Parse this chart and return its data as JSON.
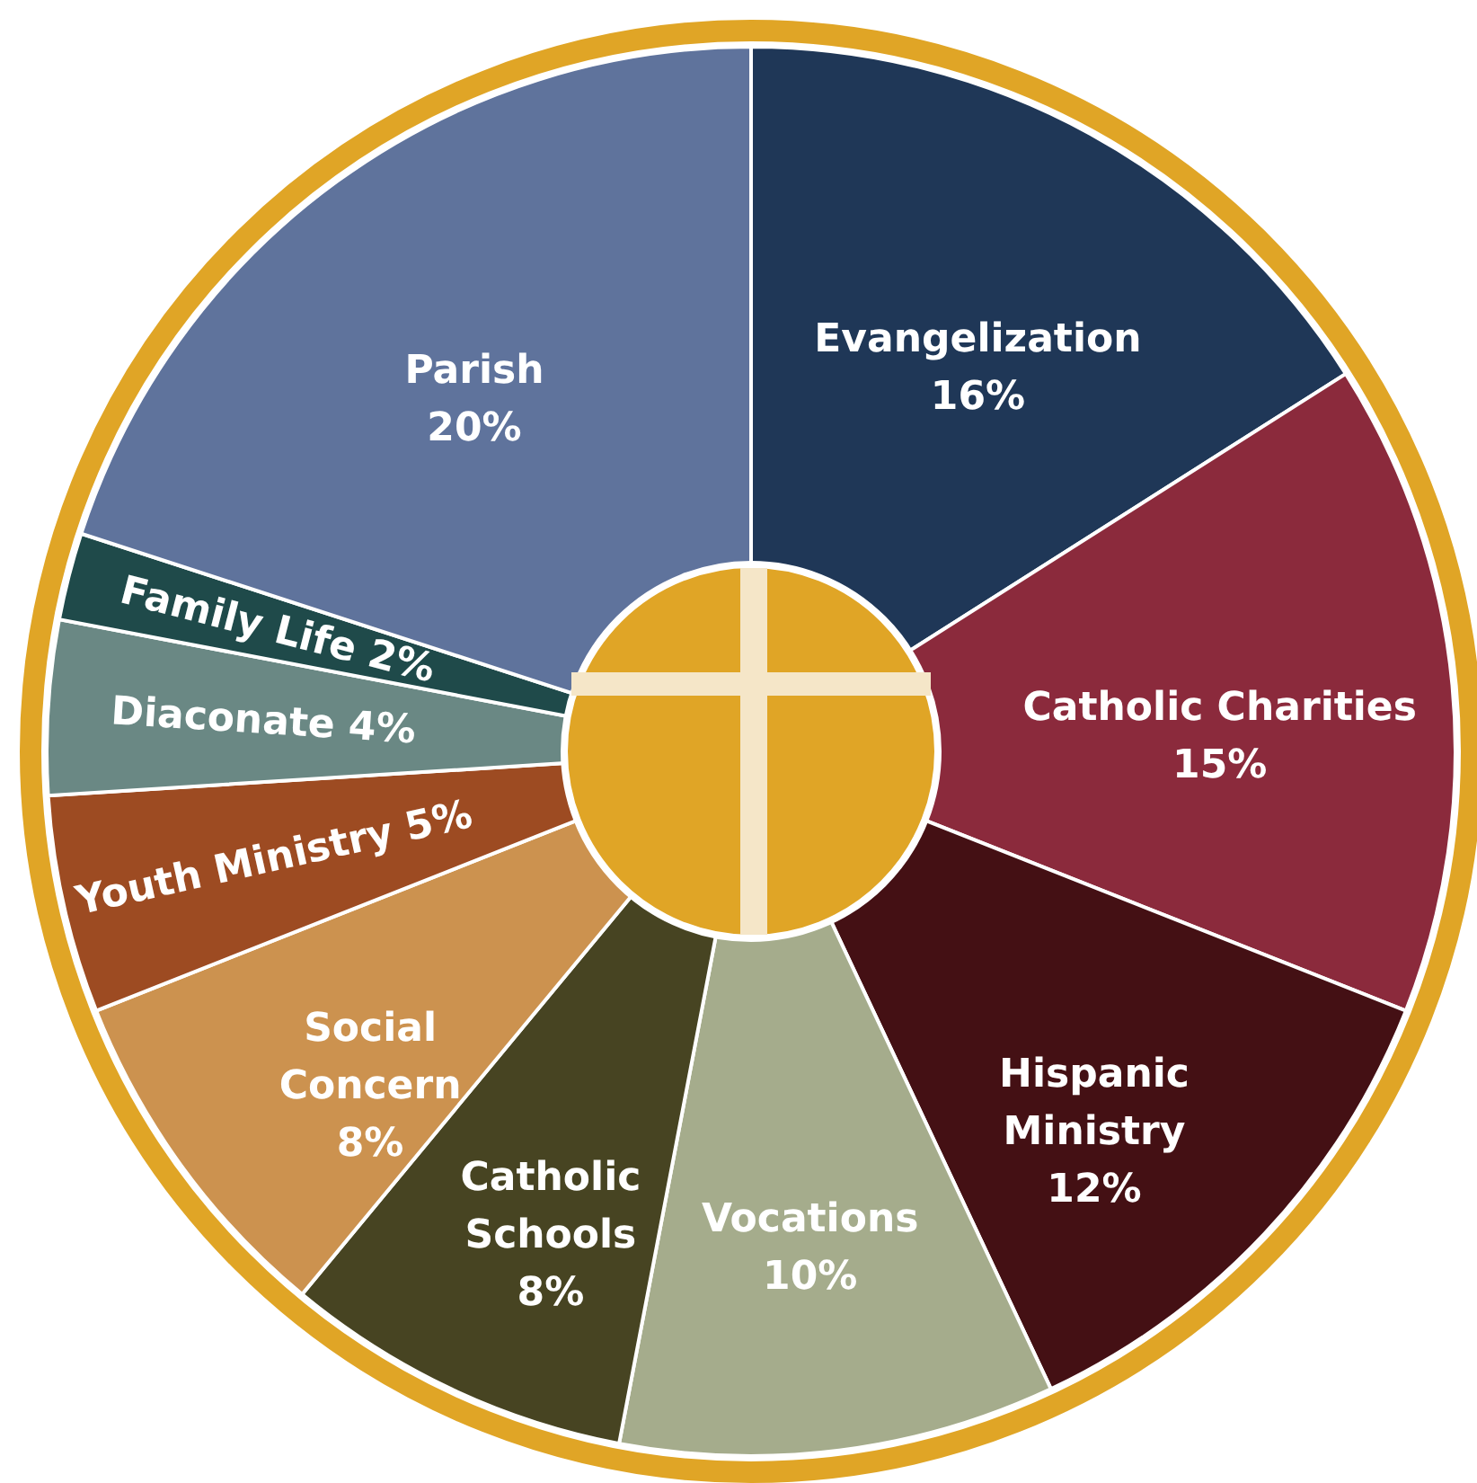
{
  "chart_data": {
    "type": "donut",
    "categories": [
      "Evangelization",
      "Catholic Charities",
      "Hispanic Ministry",
      "Vocations",
      "Catholic Schools",
      "Social Concern",
      "Youth Ministry",
      "Diaconate",
      "Family Life",
      "Parish"
    ],
    "values": [
      16,
      15,
      12,
      10,
      8,
      8,
      5,
      4,
      2,
      20
    ],
    "colors": [
      "#1f3757",
      "#8b2a3c",
      "#441014",
      "#a5ac8c",
      "#474422",
      "#cc924f",
      "#9d4b22",
      "#6a8884",
      "#1f4a4a",
      "#5f739c"
    ],
    "value_labels": [
      "16%",
      "15%",
      "12%",
      "10%",
      "8%",
      "8%",
      "5%",
      "4%",
      "2%",
      "20%"
    ]
  }
}
